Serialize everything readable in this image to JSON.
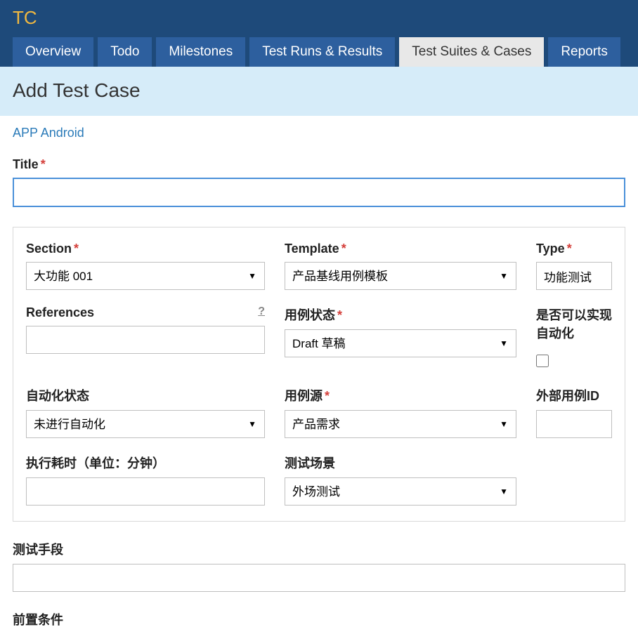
{
  "brand": "TC",
  "nav": {
    "tabs": [
      {
        "label": "Overview",
        "active": false
      },
      {
        "label": "Todo",
        "active": false
      },
      {
        "label": "Milestones",
        "active": false
      },
      {
        "label": "Test Runs & Results",
        "active": false
      },
      {
        "label": "Test Suites & Cases",
        "active": true
      },
      {
        "label": "Reports",
        "active": false
      }
    ]
  },
  "page": {
    "title": "Add Test Case",
    "breadcrumb": "APP Android"
  },
  "title_field": {
    "label": "Title",
    "required": true,
    "value": ""
  },
  "form": {
    "section": {
      "label": "Section",
      "required": true,
      "value": "大功能 001"
    },
    "template": {
      "label": "Template",
      "required": true,
      "value": "产品基线用例模板"
    },
    "type": {
      "label": "Type",
      "required": true,
      "value": "功能测试"
    },
    "references": {
      "label": "References",
      "required": false,
      "value": "",
      "help": "?"
    },
    "case_status": {
      "label": "用例状态",
      "required": true,
      "value": "Draft 草稿"
    },
    "can_automate": {
      "label": "是否可以实现自动化",
      "required": false,
      "checked": false
    },
    "auto_status": {
      "label": "自动化状态",
      "required": false,
      "value": "未进行自动化"
    },
    "case_source": {
      "label": "用例源",
      "required": true,
      "value": "产品需求"
    },
    "external_id": {
      "label": "外部用例ID",
      "required": false,
      "value": ""
    },
    "exec_time": {
      "label": "执行耗时（单位：分钟）",
      "required": false,
      "value": ""
    },
    "test_scene": {
      "label": "测试场景",
      "required": false,
      "value": "外场测试"
    }
  },
  "lower": {
    "test_method": {
      "label": "测试手段",
      "value": ""
    },
    "precondition": {
      "label": "前置条件"
    }
  },
  "colors": {
    "header_bg": "#1e4a7a",
    "tab_bg": "#2d5f9e",
    "tab_active_bg": "#e8e8e8",
    "brand_color": "#f0b840",
    "title_band_bg": "#d6ecf9",
    "link_color": "#2b7bb9",
    "required_color": "#d43f3a",
    "focus_border": "#4a90d9"
  }
}
